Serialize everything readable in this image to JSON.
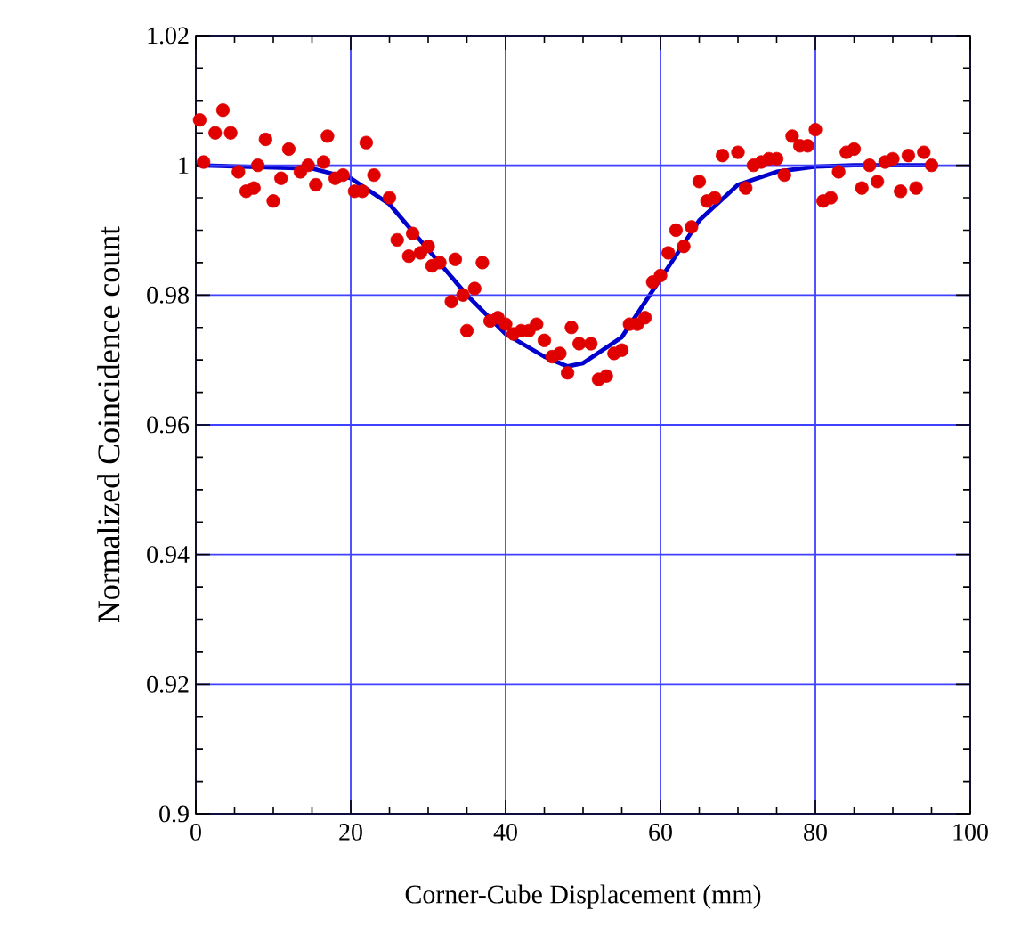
{
  "chart_data": {
    "type": "scatter",
    "xlabel": "Corner-Cube Displacement (mm)",
    "ylabel": "Normalized Coincidence count",
    "xlim": [
      0,
      100
    ],
    "xticks": [
      0,
      20,
      40,
      60,
      80,
      100
    ],
    "ylim": [
      0.9,
      1.02
    ],
    "yticks": [
      0.9,
      0.92,
      0.94,
      0.96,
      0.98,
      1,
      1.02
    ],
    "grid": true,
    "series": [
      {
        "type": "scatter",
        "color": "#e00000",
        "marker": "circle",
        "x": [
          0.5,
          1,
          2.5,
          3.5,
          4.5,
          5.5,
          6.5,
          7.5,
          8,
          9,
          10,
          11,
          12,
          13.5,
          14.5,
          15.5,
          16.5,
          17,
          18,
          19,
          20.5,
          21.5,
          22,
          23,
          25,
          26,
          27.5,
          28,
          29,
          30,
          30.5,
          31.5,
          33,
          33.5,
          34.5,
          35,
          36,
          37,
          38,
          39,
          40,
          41,
          42,
          43,
          44,
          45,
          46,
          47,
          48,
          48.5,
          49.5,
          51,
          52,
          53,
          54,
          55,
          56,
          57,
          58,
          59,
          60,
          61,
          62,
          63,
          64,
          65,
          66,
          67,
          68,
          70,
          71,
          72,
          73,
          74,
          75,
          76,
          77,
          78,
          79,
          80,
          81,
          82,
          83,
          84,
          85,
          86,
          87,
          88,
          89,
          90,
          91,
          92,
          93,
          94,
          95
        ],
        "values": [
          1.007,
          1.0005,
          1.005,
          1.0085,
          1.005,
          0.999,
          0.996,
          0.9965,
          1.0,
          1.004,
          0.9945,
          0.998,
          1.0025,
          0.999,
          1.0,
          0.997,
          1.0005,
          1.0045,
          0.998,
          0.9985,
          0.996,
          0.996,
          1.0035,
          0.9985,
          0.995,
          0.9885,
          0.986,
          0.9895,
          0.9865,
          0.9875,
          0.9845,
          0.985,
          0.979,
          0.9855,
          0.98,
          0.9745,
          0.981,
          0.985,
          0.976,
          0.9765,
          0.9755,
          0.974,
          0.9745,
          0.9745,
          0.9755,
          0.973,
          0.9705,
          0.971,
          0.968,
          0.975,
          0.9725,
          0.9725,
          0.967,
          0.9675,
          0.971,
          0.9715,
          0.9755,
          0.9755,
          0.9765,
          0.982,
          0.983,
          0.9865,
          0.99,
          0.9875,
          0.9905,
          0.9975,
          0.9945,
          0.995,
          1.0015,
          1.002,
          0.9965,
          1.0,
          1.0005,
          1.001,
          1.001,
          0.9985,
          1.0045,
          1.003,
          1.003,
          1.0055,
          0.9945,
          0.995,
          0.999,
          1.002,
          1.0025,
          0.9965,
          1.0,
          0.9975,
          1.0005,
          1.001,
          0.996,
          1.0015,
          0.9965,
          1.002,
          1.0
        ]
      },
      {
        "type": "line",
        "color": "#0000cc",
        "marker": "none",
        "line_style": "solid",
        "x": [
          0,
          15,
          20,
          25,
          30,
          35,
          40,
          45,
          48,
          50,
          55,
          60,
          65,
          70,
          75,
          80,
          85,
          95
        ],
        "values": [
          1.0,
          0.9995,
          0.998,
          0.994,
          0.987,
          0.98,
          0.974,
          0.9705,
          0.969,
          0.9695,
          0.9735,
          0.9825,
          0.9915,
          0.997,
          0.999,
          0.9998,
          1.0,
          1.0
        ]
      }
    ]
  }
}
